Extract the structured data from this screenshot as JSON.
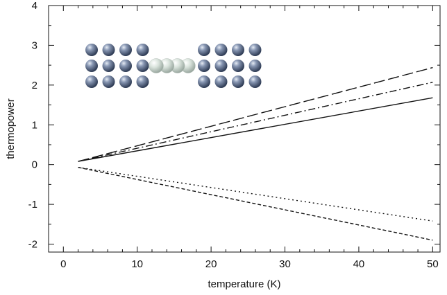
{
  "chart_data": {
    "type": "line",
    "xlabel": "temperature (K)",
    "ylabel": "thermopower",
    "xlim": [
      -2,
      51
    ],
    "ylim": [
      -2.2,
      4.0
    ],
    "xticks": [
      0,
      10,
      20,
      30,
      40,
      50
    ],
    "yticks": [
      -2,
      -1,
      0,
      1,
      2,
      3,
      4
    ],
    "xtick_labels": [
      "0",
      "10",
      "20",
      "30",
      "40",
      "50"
    ],
    "ytick_labels": [
      "-2",
      "-1",
      "0",
      "1",
      "2",
      "3",
      "4"
    ],
    "grid": false,
    "series": [
      {
        "style": "long-dash",
        "x": [
          2,
          50
        ],
        "y": [
          0.08,
          2.44
        ]
      },
      {
        "style": "dash-dot",
        "x": [
          2,
          50
        ],
        "y": [
          0.08,
          2.07
        ]
      },
      {
        "style": "solid",
        "x": [
          2,
          50
        ],
        "y": [
          0.08,
          1.68
        ]
      },
      {
        "style": "dotted",
        "x": [
          2,
          50
        ],
        "y": [
          -0.07,
          -1.42
        ]
      },
      {
        "style": "short-dash",
        "x": [
          2,
          50
        ],
        "y": [
          -0.07,
          -1.9
        ]
      }
    ],
    "inset": {
      "description_icon": "atomic-junction-icon",
      "lead_atom_color": "#4f6487",
      "chain_atom_color": "#d2ddd6",
      "left_lead": {
        "rows": 3,
        "cols": 4
      },
      "chain_atoms": 4,
      "right_lead": {
        "rows": 3,
        "cols": 4
      }
    }
  }
}
